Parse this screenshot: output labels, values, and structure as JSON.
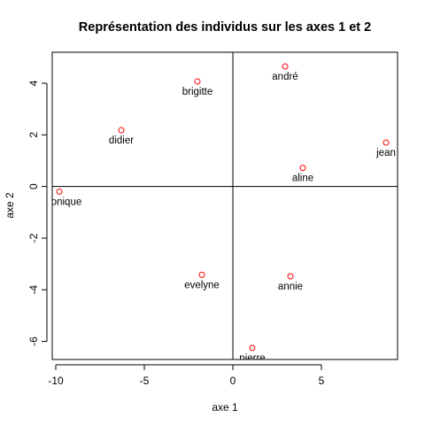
{
  "chart_data": {
    "type": "scatter",
    "title": "Représentation des individus sur les axes 1 et 2",
    "xlabel": "axe 1",
    "ylabel": "axe 2",
    "xlim": [
      -10.2,
      9.3
    ],
    "ylim": [
      -6.7,
      5.2
    ],
    "xticks": [
      -10,
      -5,
      0,
      5
    ],
    "yticks": [
      -6,
      -4,
      -2,
      0,
      2,
      4
    ],
    "reference_lines": {
      "x": 0,
      "y": 0
    },
    "point_color": "#ff0000",
    "grid": false,
    "points": [
      {
        "label": "andré",
        "x": 2.95,
        "y": 4.65
      },
      {
        "label": "brigitte",
        "x": -2.0,
        "y": 4.07
      },
      {
        "label": "didier",
        "x": -6.3,
        "y": 2.18
      },
      {
        "label": "jean",
        "x": 8.65,
        "y": 1.7
      },
      {
        "label": "aline",
        "x": 3.95,
        "y": 0.72
      },
      {
        "label": "véronique",
        "x": -9.8,
        "y": -0.2
      },
      {
        "label": "evelyne",
        "x": -1.75,
        "y": -3.42
      },
      {
        "label": "annie",
        "x": 3.25,
        "y": -3.48
      },
      {
        "label": "pierre",
        "x": 1.1,
        "y": -6.25
      }
    ]
  }
}
